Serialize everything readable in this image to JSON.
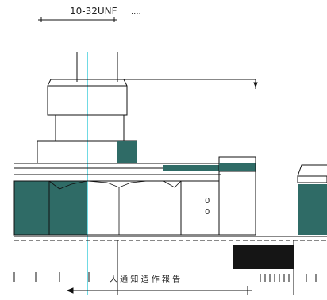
{
  "drawing": {
    "thread_callout": "10-32UNF",
    "thread_callout_suffix": "....",
    "side_label_top": "0",
    "side_label_bottom": "0",
    "bottom_note": "人 通 知 造 作 報 告"
  },
  "colors": {
    "background": "#ffffff",
    "line": "#111111",
    "fill_teal": "#2f6b66",
    "centerline_cyan": "#22c5d6",
    "block_black": "#151515"
  }
}
